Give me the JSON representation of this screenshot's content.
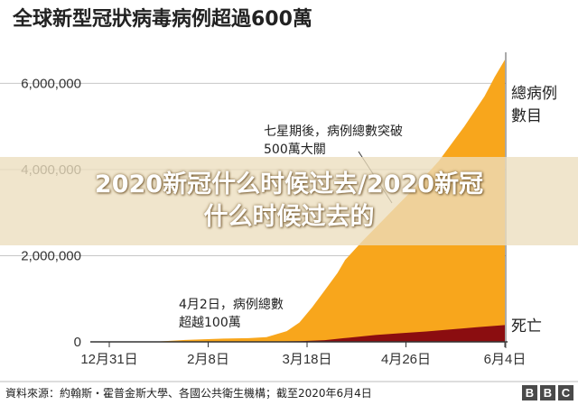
{
  "chart_data": {
    "type": "area",
    "title": "全球新型冠狀病毒病例超過600萬",
    "x_labels": [
      "12月31日",
      "2月8日",
      "3月18日",
      "4月26日",
      "6月4日"
    ],
    "x_days": [
      0,
      39,
      78,
      117,
      156
    ],
    "y_tick_labels": [
      "0",
      "2,000,000",
      "4,000,000",
      "6,000,000"
    ],
    "y_tick_values": [
      0,
      2000000,
      4000000,
      6000000
    ],
    "ylim": [
      0,
      6700000
    ],
    "grid": true,
    "series": [
      {
        "name": "總病例數目",
        "color": "#f8a61c",
        "x": [
          0,
          20,
          30,
          45,
          55,
          62,
          70,
          75,
          80,
          85,
          90,
          93,
          100,
          110,
          120,
          130,
          140,
          148,
          152,
          156
        ],
        "values": [
          0,
          10000,
          45000,
          75000,
          85000,
          110000,
          250000,
          450000,
          800000,
          1200000,
          1600000,
          1900000,
          2350000,
          2950000,
          3550000,
          4200000,
          5000000,
          5700000,
          6150000,
          6550000
        ]
      },
      {
        "name": "死亡",
        "color": "#8b0d10",
        "x": [
          0,
          60,
          75,
          85,
          95,
          105,
          115,
          125,
          135,
          145,
          156
        ],
        "values": [
          0,
          3000,
          15000,
          40000,
          100000,
          160000,
          200000,
          240000,
          290000,
          340000,
          390000
        ]
      }
    ],
    "annotations": [
      {
        "lines": [
          "七星期後，病例總數突破",
          "500萬大關"
        ]
      },
      {
        "lines": [
          "4月2日，病例總數",
          "超越100萬"
        ]
      }
    ],
    "legend": {
      "total": [
        "總病例",
        "數目"
      ],
      "deaths": "死亡"
    }
  },
  "source": "資料來源：約翰斯・霍普金斯大學、各國公共衛生機構；截至2020年6月4日",
  "brand": [
    "B",
    "B",
    "C"
  ],
  "overlay": {
    "line1": "2020新冠什么时候过去/2020新冠",
    "line2": "什么时候过去的"
  }
}
